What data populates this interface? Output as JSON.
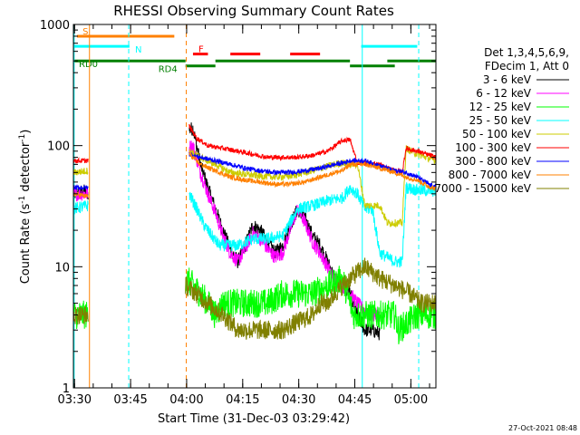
{
  "chart_data": {
    "type": "line",
    "title": "RHESSI Observing Summary Count Rates",
    "xlabel": "Start Time (31-Dec-03 03:29:42)",
    "ylabel_main": "Count Rate (s",
    "ylabel_sup1": "-1",
    "ylabel_mid": " detector",
    "ylabel_sup2": "-1",
    "ylabel_end": ")",
    "y_scale": "log",
    "ylim": [
      1,
      1000
    ],
    "xlim_minutes": [
      0,
      97
    ],
    "x_ticks": [
      {
        "label": "03:30",
        "min": 0.3
      },
      {
        "label": "03:45",
        "min": 15.3
      },
      {
        "label": "04:00",
        "min": 30.3
      },
      {
        "label": "04:15",
        "min": 45.3
      },
      {
        "label": "04:30",
        "min": 60.3
      },
      {
        "label": "04:45",
        "min": 75.3
      },
      {
        "label": "05:00",
        "min": 90.3
      }
    ],
    "y_ticks": [
      {
        "label": "1",
        "value": 1
      },
      {
        "label": "10",
        "value": 10
      },
      {
        "label": "100",
        "value": 100
      },
      {
        "label": "1000",
        "value": 1000
      }
    ],
    "legend": {
      "position": "right",
      "header": [
        "Det 1,3,4,5,6,9,",
        "FDecim 1, Att 0"
      ],
      "entries": [
        {
          "label": "3 - 6 keV",
          "color": "#000000"
        },
        {
          "label": "6 - 12 keV",
          "color": "#ff00ff"
        },
        {
          "label": "12 - 25 keV",
          "color": "#00ff00"
        },
        {
          "label": "25 - 50 keV",
          "color": "#00ffff"
        },
        {
          "label": "50 - 100 keV",
          "color": "#cccc00"
        },
        {
          "label": "100 - 300 keV",
          "color": "#ff0000"
        },
        {
          "label": "300 - 800 keV",
          "color": "#0000ff"
        },
        {
          "label": "800 - 7000 keV",
          "color": "#ff8000"
        },
        {
          "label": "7000 - 15000 keV",
          "color": "#808000"
        }
      ]
    },
    "flags": [
      {
        "label": "S",
        "color": "#ff8000",
        "level": 800,
        "segments": [
          [
            1,
            27
          ]
        ]
      },
      {
        "label": "N",
        "color": "#00ffff",
        "level": 660,
        "segments": [
          [
            0,
            15
          ]
        ]
      },
      {
        "label": "F",
        "color": "#ff0000",
        "level": 570,
        "segments": [
          [
            32,
            36
          ],
          [
            42,
            50
          ],
          [
            58,
            66
          ]
        ]
      },
      {
        "label": "RD0",
        "color": "#008000",
        "level": 500,
        "segments": [
          [
            0,
            30
          ],
          [
            38,
            74
          ],
          [
            84,
            97
          ]
        ]
      },
      {
        "label": "RD4",
        "color": "#008000",
        "level": 455,
        "segments": [
          [
            30,
            38
          ],
          [
            74,
            86
          ]
        ]
      },
      {
        "label": "",
        "color": "#00ffff",
        "level": 660,
        "segments": [
          [
            77,
            92
          ]
        ]
      }
    ],
    "vertical_lines": [
      {
        "min": 4.3,
        "color": "#ff8000",
        "style": "solid"
      },
      {
        "min": 0.2,
        "color": "#00ffff",
        "style": "solid"
      },
      {
        "min": 14.8,
        "color": "#00ffff",
        "style": "dashed"
      },
      {
        "min": 30.2,
        "color": "#ff8000",
        "style": "dashed"
      },
      {
        "min": 77.3,
        "color": "#00ffff",
        "style": "solid"
      },
      {
        "min": 92.4,
        "color": "#00ffff",
        "style": "dashed"
      }
    ],
    "series": [
      {
        "name": "3 - 6 keV",
        "color": "#000000",
        "noise": 0.06,
        "points": [
          [
            0,
            40
          ],
          [
            3,
            42
          ],
          [
            4,
            40
          ],
          [
            32,
            140
          ],
          [
            34,
            70
          ],
          [
            36,
            45
          ],
          [
            38,
            30
          ],
          [
            40,
            20
          ],
          [
            42,
            14
          ],
          [
            44,
            11
          ],
          [
            46,
            15
          ],
          [
            48,
            22
          ],
          [
            50,
            20
          ],
          [
            52,
            16
          ],
          [
            54,
            13
          ],
          [
            56,
            15
          ],
          [
            58,
            22
          ],
          [
            60,
            30
          ],
          [
            62,
            25
          ],
          [
            64,
            18
          ],
          [
            66,
            15
          ],
          [
            68,
            11
          ],
          [
            70,
            8
          ],
          [
            72,
            7
          ],
          [
            74,
            6
          ],
          [
            76,
            4
          ],
          [
            78,
            3
          ],
          [
            80,
            3
          ],
          [
            82,
            2.8
          ]
        ],
        "segments": [
          [
            0,
            4
          ],
          [
            31,
            82
          ]
        ]
      },
      {
        "name": "6 - 12 keV",
        "color": "#ff00ff",
        "noise": 0.06,
        "points": [
          [
            0,
            40
          ],
          [
            4,
            40
          ],
          [
            32,
            100
          ],
          [
            34,
            60
          ],
          [
            36,
            40
          ],
          [
            38,
            28
          ],
          [
            40,
            18
          ],
          [
            42,
            13
          ],
          [
            44,
            11
          ],
          [
            46,
            14
          ],
          [
            48,
            19
          ],
          [
            50,
            17
          ],
          [
            52,
            14
          ],
          [
            54,
            12
          ],
          [
            56,
            13
          ],
          [
            58,
            20
          ],
          [
            60,
            30
          ],
          [
            62,
            23
          ],
          [
            64,
            16
          ],
          [
            66,
            13
          ],
          [
            68,
            10
          ],
          [
            70,
            8
          ],
          [
            72,
            7
          ],
          [
            74,
            6
          ],
          [
            76,
            5
          ],
          [
            79,
            4
          ],
          [
            82,
            4
          ]
        ],
        "segments": [
          [
            0,
            4
          ],
          [
            31,
            82
          ]
        ]
      },
      {
        "name": "12 - 25 keV",
        "color": "#00ff00",
        "noise": 0.12,
        "points": [
          [
            0,
            4
          ],
          [
            4,
            4
          ],
          [
            30,
            8
          ],
          [
            32,
            7
          ],
          [
            34,
            6
          ],
          [
            36,
            5
          ],
          [
            38,
            4
          ],
          [
            40,
            5
          ],
          [
            42,
            5
          ],
          [
            44,
            5
          ],
          [
            48,
            5
          ],
          [
            52,
            5
          ],
          [
            56,
            6
          ],
          [
            60,
            6
          ],
          [
            64,
            6
          ],
          [
            68,
            7
          ],
          [
            72,
            8
          ],
          [
            75,
            4
          ],
          [
            78,
            4
          ],
          [
            82,
            4
          ],
          [
            86,
            4
          ],
          [
            87,
            3
          ],
          [
            92,
            4
          ],
          [
            94,
            4
          ],
          [
            97,
            4
          ]
        ],
        "segments": [
          [
            0,
            4
          ],
          [
            30,
            97
          ]
        ]
      },
      {
        "name": "25 - 50 keV",
        "color": "#00ffff",
        "noise": 0.05,
        "points": [
          [
            0,
            30
          ],
          [
            4,
            32
          ],
          [
            31,
            40
          ],
          [
            33,
            30
          ],
          [
            35,
            22
          ],
          [
            37,
            18
          ],
          [
            39,
            15
          ],
          [
            41,
            15
          ],
          [
            44,
            15
          ],
          [
            48,
            17
          ],
          [
            52,
            17
          ],
          [
            56,
            18
          ],
          [
            60,
            30
          ],
          [
            64,
            32
          ],
          [
            68,
            35
          ],
          [
            72,
            37
          ],
          [
            74,
            45
          ],
          [
            76,
            40
          ],
          [
            78,
            30
          ],
          [
            80,
            30
          ],
          [
            82,
            13
          ],
          [
            86,
            11
          ],
          [
            88,
            11
          ],
          [
            89,
            45
          ],
          [
            92,
            43
          ],
          [
            97,
            42
          ]
        ],
        "segments": [
          [
            0,
            4
          ],
          [
            31,
            97
          ]
        ]
      },
      {
        "name": "50 - 100 keV",
        "color": "#cccc00",
        "noise": 0.03,
        "points": [
          [
            0,
            60
          ],
          [
            4,
            62
          ],
          [
            31,
            90
          ],
          [
            34,
            80
          ],
          [
            38,
            70
          ],
          [
            42,
            60
          ],
          [
            46,
            58
          ],
          [
            50,
            56
          ],
          [
            54,
            55
          ],
          [
            58,
            56
          ],
          [
            62,
            60
          ],
          [
            66,
            65
          ],
          [
            70,
            70
          ],
          [
            72,
            72
          ],
          [
            74,
            70
          ],
          [
            76,
            70
          ],
          [
            78,
            32
          ],
          [
            82,
            32
          ],
          [
            84,
            23
          ],
          [
            88,
            23
          ],
          [
            89,
            95
          ],
          [
            92,
            85
          ],
          [
            97,
            75
          ]
        ],
        "segments": [
          [
            0,
            4
          ],
          [
            31,
            97
          ]
        ]
      },
      {
        "name": "100 - 300 keV",
        "color": "#ff0000",
        "noise": 0.02,
        "points": [
          [
            0,
            75
          ],
          [
            4,
            75
          ],
          [
            31,
            145
          ],
          [
            33,
            115
          ],
          [
            36,
            100
          ],
          [
            40,
            95
          ],
          [
            44,
            90
          ],
          [
            48,
            85
          ],
          [
            52,
            80
          ],
          [
            56,
            80
          ],
          [
            60,
            80
          ],
          [
            64,
            83
          ],
          [
            68,
            90
          ],
          [
            72,
            110
          ],
          [
            74,
            112
          ],
          [
            76,
            72
          ],
          [
            78,
            72
          ],
          [
            82,
            70
          ],
          [
            84,
            65
          ],
          [
            88,
            60
          ],
          [
            89,
            95
          ],
          [
            92,
            90
          ],
          [
            97,
            80
          ]
        ],
        "segments": [
          [
            0,
            4
          ],
          [
            31,
            97
          ]
        ]
      },
      {
        "name": "300 - 800 keV",
        "color": "#0000ff",
        "noise": 0.02,
        "points": [
          [
            0,
            45
          ],
          [
            4,
            45
          ],
          [
            31,
            85
          ],
          [
            34,
            80
          ],
          [
            38,
            75
          ],
          [
            42,
            70
          ],
          [
            46,
            65
          ],
          [
            50,
            62
          ],
          [
            54,
            60
          ],
          [
            58,
            60
          ],
          [
            62,
            62
          ],
          [
            66,
            65
          ],
          [
            70,
            70
          ],
          [
            72,
            72
          ],
          [
            74,
            75
          ],
          [
            78,
            75
          ],
          [
            82,
            68
          ],
          [
            86,
            62
          ],
          [
            89,
            60
          ],
          [
            92,
            55
          ],
          [
            95,
            48
          ],
          [
            97,
            45
          ]
        ],
        "segments": [
          [
            0,
            4
          ],
          [
            31,
            97
          ]
        ]
      },
      {
        "name": "800 - 7000 keV",
        "color": "#ff8000",
        "noise": 0.02,
        "points": [
          [
            0,
            40
          ],
          [
            4,
            38
          ],
          [
            31,
            85
          ],
          [
            34,
            70
          ],
          [
            38,
            62
          ],
          [
            42,
            55
          ],
          [
            46,
            52
          ],
          [
            50,
            50
          ],
          [
            54,
            48
          ],
          [
            58,
            48
          ],
          [
            62,
            50
          ],
          [
            66,
            55
          ],
          [
            70,
            60
          ],
          [
            72,
            62
          ],
          [
            74,
            70
          ],
          [
            78,
            70
          ],
          [
            82,
            65
          ],
          [
            86,
            60
          ],
          [
            89,
            55
          ],
          [
            92,
            52
          ],
          [
            95,
            46
          ],
          [
            97,
            44
          ]
        ],
        "segments": [
          [
            0,
            4
          ],
          [
            31,
            97
          ]
        ]
      },
      {
        "name": "7000 - 15000 keV",
        "color": "#808000",
        "noise": 0.08,
        "points": [
          [
            0,
            4
          ],
          [
            4,
            4
          ],
          [
            30,
            7
          ],
          [
            33,
            6
          ],
          [
            36,
            5
          ],
          [
            40,
            4
          ],
          [
            44,
            3
          ],
          [
            48,
            3
          ],
          [
            52,
            3
          ],
          [
            56,
            3
          ],
          [
            60,
            3.5
          ],
          [
            64,
            4
          ],
          [
            66,
            5
          ],
          [
            68,
            5
          ],
          [
            70,
            6
          ],
          [
            72,
            7
          ],
          [
            74,
            8
          ],
          [
            76,
            9
          ],
          [
            78,
            10
          ],
          [
            80,
            9
          ],
          [
            82,
            8
          ],
          [
            86,
            7
          ],
          [
            90,
            6
          ],
          [
            93,
            5
          ],
          [
            97,
            5
          ]
        ],
        "segments": [
          [
            0,
            4
          ],
          [
            30,
            97
          ]
        ]
      }
    ],
    "timestamp": "27-Oct-2021 08:48"
  }
}
